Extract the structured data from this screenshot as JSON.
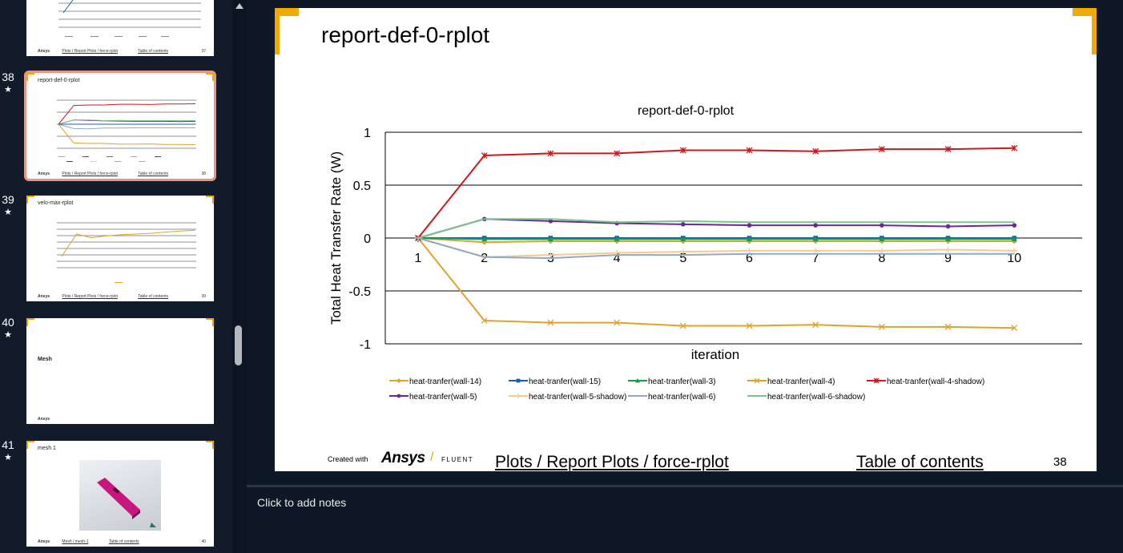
{
  "thumbnails": [
    {
      "number": "",
      "star": false,
      "title": "",
      "crumb": "Plots / Report Plots / force-rplot",
      "toc": "Table of contents",
      "page": "37"
    },
    {
      "number": "38",
      "star": true,
      "title": "report-def-0-rplot",
      "crumb": "Plots / Report Plots / force-rplot",
      "toc": "Table of contents",
      "page": "38",
      "selected": true
    },
    {
      "number": "39",
      "star": true,
      "title": "velo-max-rplot",
      "crumb": "Plots / Report Plots / force-rplot",
      "toc": "Table of contents",
      "page": "39"
    },
    {
      "number": "40",
      "star": true,
      "title": "Mesh",
      "crumb": "",
      "toc": "",
      "page": ""
    },
    {
      "number": "41",
      "star": true,
      "title": "mesh 1",
      "crumb": "Mesh / mesh-1",
      "toc": "Table of contents",
      "page": "40"
    }
  ],
  "star_glyph": "★",
  "brand_mini": "Ansys",
  "slide": {
    "title": "report-def-0-rplot",
    "created_with": "Created with",
    "brand": "Ansys",
    "brand_slash": "/",
    "brand_sub": "FLUENT",
    "breadcrumb": "Plots / Report Plots / force-rplot",
    "toc_link": "Table of contents",
    "page_number": "38"
  },
  "notes": {
    "placeholder": "Click to add notes"
  },
  "colors": {
    "accent": "#f2a900",
    "selection": "#e9947e",
    "background": "#0f1826"
  },
  "chart_data": {
    "type": "line",
    "title": "report-def-0-rplot",
    "xlabel": "iteration",
    "ylabel": "Total Heat Transfer Rate (W)",
    "ylim": [
      -1,
      1
    ],
    "yticks": [
      1,
      0.5,
      0,
      -0.5,
      -1
    ],
    "yticklabels": [
      "1",
      "0.5",
      "0",
      "-0.5",
      "-1"
    ],
    "x": [
      1,
      2,
      3,
      4,
      5,
      6,
      7,
      8,
      9,
      10
    ],
    "xticklabels": [
      "1",
      "2",
      "3",
      "4",
      "5",
      "6",
      "7",
      "8",
      "9",
      "10"
    ],
    "grid": true,
    "legend_position": "bottom",
    "series": [
      {
        "name": "heat-tranfer(wall-14)",
        "color": "#e0a22a",
        "marker": "diamond",
        "values": [
          0,
          -0.04,
          -0.03,
          -0.03,
          -0.03,
          -0.03,
          -0.03,
          -0.03,
          -0.03,
          -0.03
        ]
      },
      {
        "name": "heat-tranfer(wall-15)",
        "color": "#1f5fa8",
        "marker": "square",
        "values": [
          0,
          0,
          0,
          0,
          0,
          0,
          0,
          0,
          0,
          0
        ]
      },
      {
        "name": "heat-tranfer(wall-3)",
        "color": "#1a9a4a",
        "marker": "triangle",
        "values": [
          0,
          -0.01,
          -0.01,
          -0.01,
          -0.01,
          -0.01,
          -0.01,
          -0.01,
          -0.01,
          -0.01
        ]
      },
      {
        "name": "heat-tranfer(wall-4)",
        "color": "#e0a22a",
        "marker": "x",
        "values": [
          0,
          -0.78,
          -0.8,
          -0.8,
          -0.83,
          -0.83,
          -0.82,
          -0.84,
          -0.84,
          -0.85
        ]
      },
      {
        "name": "heat-tranfer(wall-4-shadow)",
        "color": "#d0181b",
        "marker": "star",
        "values": [
          0,
          0.78,
          0.8,
          0.8,
          0.83,
          0.83,
          0.82,
          0.84,
          0.84,
          0.85
        ]
      },
      {
        "name": "heat-tranfer(wall-5)",
        "color": "#6a2a96",
        "marker": "circle",
        "values": [
          0,
          0.18,
          0.16,
          0.14,
          0.13,
          0.12,
          0.12,
          0.12,
          0.11,
          0.12
        ]
      },
      {
        "name": "heat-tranfer(wall-5-shadow)",
        "color": "#f7c98c",
        "marker": "plus",
        "values": [
          0,
          -0.18,
          -0.16,
          -0.14,
          -0.13,
          -0.12,
          -0.12,
          -0.12,
          -0.11,
          -0.12
        ]
      },
      {
        "name": "heat-tranfer(wall-6)",
        "color": "#94a7c9",
        "marker": "none",
        "values": [
          0,
          -0.18,
          -0.19,
          -0.16,
          -0.16,
          -0.15,
          -0.15,
          -0.15,
          -0.15,
          -0.15
        ]
      },
      {
        "name": "heat-tranfer(wall-6-shadow)",
        "color": "#7cc48a",
        "marker": "none",
        "values": [
          0,
          0.18,
          0.18,
          0.15,
          0.16,
          0.15,
          0.15,
          0.15,
          0.15,
          0.15
        ]
      }
    ]
  },
  "thumb_chart_38": {
    "series": [
      {
        "color": "#d0181b",
        "values": [
          0,
          0.78,
          0.8,
          0.8,
          0.83,
          0.83,
          0.82,
          0.84,
          0.84,
          0.85
        ]
      },
      {
        "color": "#e0a22a",
        "values": [
          0,
          -0.78,
          -0.8,
          -0.8,
          -0.83,
          -0.83,
          -0.82,
          -0.84,
          -0.84,
          -0.85
        ]
      },
      {
        "color": "#6a2a96",
        "values": [
          0,
          0.18,
          0.16,
          0.14,
          0.13,
          0.12,
          0.12,
          0.12,
          0.11,
          0.12
        ]
      },
      {
        "color": "#94a7c9",
        "values": [
          0,
          -0.18,
          -0.19,
          -0.16,
          -0.16,
          -0.15,
          -0.15,
          -0.15,
          -0.15,
          -0.15
        ]
      },
      {
        "color": "#7cc48a",
        "values": [
          0,
          0.18,
          0.18,
          0.15,
          0.16,
          0.15,
          0.15,
          0.15,
          0.15,
          0.15
        ]
      },
      {
        "color": "#1f5fa8",
        "values": [
          0,
          0,
          0,
          0,
          0,
          0,
          0,
          0,
          0,
          0
        ]
      }
    ]
  },
  "thumb_chart_39": {
    "series": [
      {
        "color": "#e0a22a",
        "values": [
          2.03,
          2.09,
          2.08,
          2.085,
          2.088,
          2.09,
          2.092,
          2.095,
          2.098,
          2.1
        ]
      }
    ],
    "ylim": [
      2.0,
      2.12
    ]
  }
}
